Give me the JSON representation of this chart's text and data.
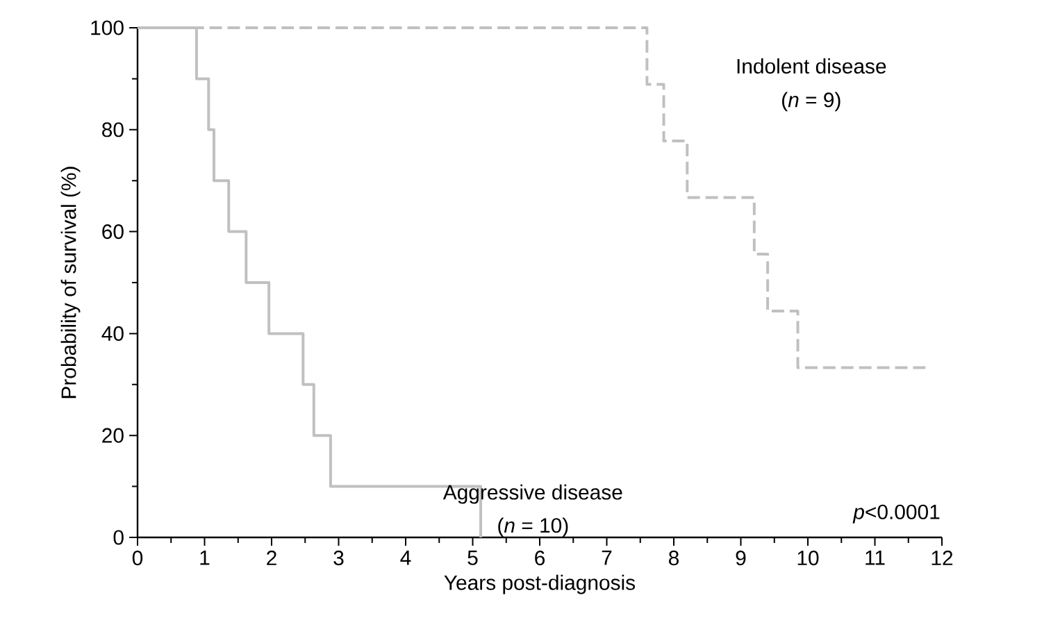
{
  "chart_data": {
    "type": "step",
    "xlabel": "Years post-diagnosis",
    "ylabel": "Probability of survival (%)",
    "xlim": [
      0,
      12
    ],
    "ylim": [
      0,
      100
    ],
    "xticks": [
      0,
      1,
      2,
      3,
      4,
      5,
      6,
      7,
      8,
      9,
      10,
      11,
      12
    ],
    "yticks": [
      0,
      20,
      40,
      60,
      80,
      100
    ],
    "grid": false,
    "series": [
      {
        "color": "#c0c0c0",
        "line_style": "solid",
        "x": [
          0,
          0.88,
          1.06,
          1.14,
          1.36,
          1.62,
          1.96,
          2.47,
          2.63,
          2.88,
          5.12
        ],
        "values": [
          100,
          90,
          80,
          70,
          60,
          50,
          40,
          30,
          20,
          10,
          0
        ]
      },
      {
        "color": "#c0c0c0",
        "line_style": "dashed",
        "x": [
          0,
          7.6,
          7.85,
          8.2,
          9.2,
          9.4,
          9.85,
          11.8
        ],
        "values": [
          100,
          88.9,
          77.8,
          66.7,
          55.6,
          44.4,
          33.3,
          33.3
        ]
      }
    ],
    "annotations": [
      "Indolent disease",
      "(*n* = 9)",
      "Aggressive disease",
      "(*n* = 10)",
      "*p*<0.0001"
    ]
  }
}
